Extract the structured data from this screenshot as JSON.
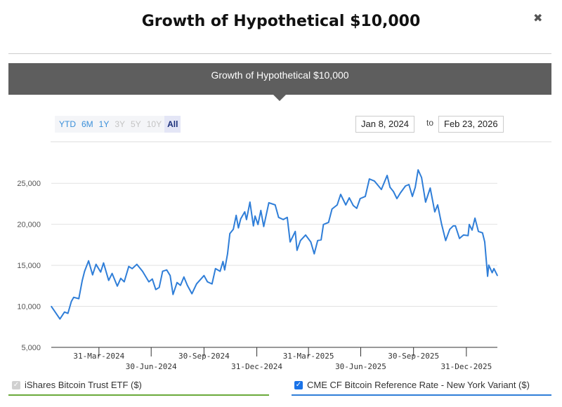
{
  "header": {
    "title": "Growth of Hypothetical $10,000",
    "close_icon": "close-icon"
  },
  "banner": {
    "title": "Growth of Hypothetical $10,000"
  },
  "range_selector": {
    "buttons": [
      {
        "label": "YTD",
        "state": "enabled"
      },
      {
        "label": "6M",
        "state": "enabled"
      },
      {
        "label": "1Y",
        "state": "enabled"
      },
      {
        "label": "3Y",
        "state": "disabled"
      },
      {
        "label": "5Y",
        "state": "disabled"
      },
      {
        "label": "10Y",
        "state": "disabled"
      },
      {
        "label": "All",
        "state": "selected"
      }
    ]
  },
  "date_range": {
    "from": "Jan 8, 2024",
    "to_label": "to",
    "to": "Feb 23, 2026"
  },
  "legend": [
    {
      "label": "iShares Bitcoin Trust ETF ($)",
      "checked": true,
      "disabled": true,
      "color": "#6aaa3a"
    },
    {
      "label": "CME CF Bitcoin Reference Rate - New York Variant ($)",
      "checked": true,
      "disabled": false,
      "color": "#2f7ed8"
    }
  ],
  "chart_data": {
    "type": "line",
    "title": "",
    "xlabel": "",
    "ylabel": "",
    "xlim": [
      "2024-01-08",
      "2026-02-23"
    ],
    "ylim": [
      5000,
      27500
    ],
    "yticks": [
      5000,
      10000,
      15000,
      20000,
      25000
    ],
    "ytick_labels": [
      "5,000",
      "10,000",
      "15,000",
      "20,000",
      "25,000"
    ],
    "xticks": [
      "2024-03-31",
      "2024-06-30",
      "2024-09-30",
      "2024-12-31",
      "2025-03-31",
      "2025-06-30",
      "2025-09-30",
      "2025-12-31"
    ],
    "xtick_labels": [
      "31-Mar-2024",
      "30-Jun-2024",
      "30-Sep-2024",
      "31-Dec-2024",
      "31-Mar-2025",
      "30-Jun-2025",
      "30-Sep-2025",
      "31-Dec-2025"
    ],
    "grid": true,
    "series": [
      {
        "name": "CME CF Bitcoin Reference Rate - New York Variant ($)",
        "color": "#2f7ed8",
        "points": [
          [
            "2024-01-08",
            10000
          ],
          [
            "2024-01-23",
            8460
          ],
          [
            "2024-01-31",
            9300
          ],
          [
            "2024-02-06",
            9150
          ],
          [
            "2024-02-12",
            10600
          ],
          [
            "2024-02-16",
            11100
          ],
          [
            "2024-02-25",
            10940
          ],
          [
            "2024-03-02",
            13160
          ],
          [
            "2024-03-06",
            14270
          ],
          [
            "2024-03-13",
            15550
          ],
          [
            "2024-03-20",
            13840
          ],
          [
            "2024-03-26",
            15120
          ],
          [
            "2024-04-03",
            14180
          ],
          [
            "2024-04-08",
            15290
          ],
          [
            "2024-04-17",
            13160
          ],
          [
            "2024-04-23",
            14010
          ],
          [
            "2024-05-02",
            12470
          ],
          [
            "2024-05-08",
            13410
          ],
          [
            "2024-05-14",
            12990
          ],
          [
            "2024-05-22",
            14860
          ],
          [
            "2024-05-28",
            14600
          ],
          [
            "2024-06-05",
            15120
          ],
          [
            "2024-06-15",
            14270
          ],
          [
            "2024-06-26",
            12990
          ],
          [
            "2024-07-02",
            13330
          ],
          [
            "2024-07-08",
            12050
          ],
          [
            "2024-07-14",
            12300
          ],
          [
            "2024-07-20",
            14270
          ],
          [
            "2024-07-27",
            14440
          ],
          [
            "2024-08-02",
            13750
          ],
          [
            "2024-08-07",
            11450
          ],
          [
            "2024-08-14",
            12900
          ],
          [
            "2024-08-20",
            12560
          ],
          [
            "2024-08-26",
            13580
          ],
          [
            "2024-09-01",
            12560
          ],
          [
            "2024-09-09",
            11540
          ],
          [
            "2024-09-17",
            12730
          ],
          [
            "2024-09-30",
            13750
          ],
          [
            "2024-10-06",
            12990
          ],
          [
            "2024-10-14",
            12730
          ],
          [
            "2024-10-20",
            14600
          ],
          [
            "2024-10-28",
            14270
          ],
          [
            "2024-11-02",
            15460
          ],
          [
            "2024-11-05",
            14440
          ],
          [
            "2024-11-10",
            16400
          ],
          [
            "2024-11-14",
            18870
          ],
          [
            "2024-11-20",
            19390
          ],
          [
            "2024-11-25",
            21090
          ],
          [
            "2024-11-29",
            19560
          ],
          [
            "2024-12-03",
            20670
          ],
          [
            "2024-12-10",
            21520
          ],
          [
            "2024-12-13",
            20580
          ],
          [
            "2024-12-19",
            22710
          ],
          [
            "2024-12-25",
            19810
          ],
          [
            "2024-12-28",
            21010
          ],
          [
            "2025-01-02",
            19980
          ],
          [
            "2025-01-07",
            21690
          ],
          [
            "2025-01-12",
            19730
          ],
          [
            "2025-01-21",
            22630
          ],
          [
            "2025-02-01",
            22370
          ],
          [
            "2025-02-07",
            20840
          ],
          [
            "2025-02-15",
            20580
          ],
          [
            "2025-02-22",
            20840
          ],
          [
            "2025-02-27",
            17850
          ],
          [
            "2025-03-08",
            19130
          ],
          [
            "2025-03-11",
            16830
          ],
          [
            "2025-03-17",
            18020
          ],
          [
            "2025-03-26",
            18700
          ],
          [
            "2025-04-04",
            17850
          ],
          [
            "2025-04-10",
            16400
          ],
          [
            "2025-04-16",
            18020
          ],
          [
            "2025-04-22",
            18110
          ],
          [
            "2025-04-26",
            19980
          ],
          [
            "2025-05-05",
            20240
          ],
          [
            "2025-05-11",
            21860
          ],
          [
            "2025-05-20",
            22370
          ],
          [
            "2025-05-26",
            23650
          ],
          [
            "2025-06-04",
            22370
          ],
          [
            "2025-06-10",
            23230
          ],
          [
            "2025-06-17",
            22290
          ],
          [
            "2025-06-23",
            21950
          ],
          [
            "2025-06-29",
            23140
          ],
          [
            "2025-07-08",
            23400
          ],
          [
            "2025-07-15",
            25530
          ],
          [
            "2025-07-24",
            25270
          ],
          [
            "2025-08-05",
            24250
          ],
          [
            "2025-08-15",
            25960
          ],
          [
            "2025-08-20",
            24510
          ],
          [
            "2025-08-26",
            23990
          ],
          [
            "2025-09-01",
            23140
          ],
          [
            "2025-09-07",
            23820
          ],
          [
            "2025-09-16",
            24680
          ],
          [
            "2025-09-22",
            24850
          ],
          [
            "2025-09-28",
            23400
          ],
          [
            "2025-10-03",
            24510
          ],
          [
            "2025-10-08",
            26640
          ],
          [
            "2025-10-14",
            25700
          ],
          [
            "2025-10-21",
            22710
          ],
          [
            "2025-10-29",
            24420
          ],
          [
            "2025-11-06",
            21520
          ],
          [
            "2025-11-11",
            22370
          ],
          [
            "2025-11-18",
            19980
          ],
          [
            "2025-11-25",
            18020
          ],
          [
            "2025-12-02",
            19390
          ],
          [
            "2025-12-08",
            19810
          ],
          [
            "2025-12-12",
            19810
          ],
          [
            "2025-12-19",
            18280
          ],
          [
            "2025-12-26",
            18700
          ],
          [
            "2026-01-03",
            18620
          ],
          [
            "2026-01-05",
            19980
          ],
          [
            "2026-01-10",
            19300
          ],
          [
            "2026-01-15",
            20750
          ],
          [
            "2026-01-21",
            19130
          ],
          [
            "2026-01-28",
            18960
          ],
          [
            "2026-02-01",
            17850
          ],
          [
            "2026-02-06",
            13670
          ],
          [
            "2026-02-08",
            15030
          ],
          [
            "2026-02-14",
            14100
          ],
          [
            "2026-02-17",
            14600
          ],
          [
            "2026-02-23",
            13750
          ]
        ]
      }
    ]
  }
}
